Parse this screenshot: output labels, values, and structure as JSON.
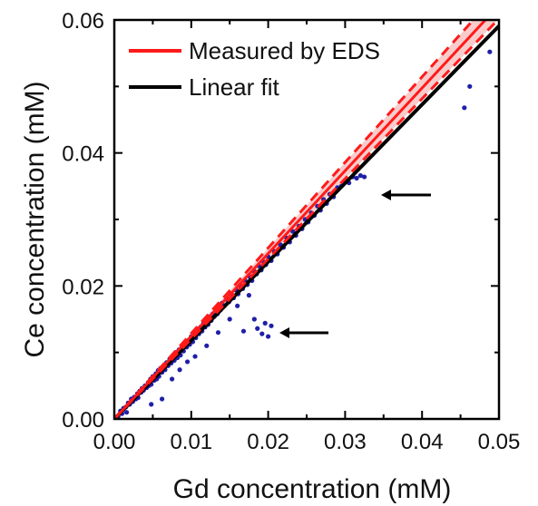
{
  "chart_data": {
    "type": "scatter",
    "title": "",
    "xlabel": "Gd concentration (mM)",
    "ylabel": "Ce concentration (mM)",
    "xlim": [
      0,
      0.05
    ],
    "ylim": [
      0,
      0.06
    ],
    "xticks": [
      0,
      0.01,
      0.02,
      0.03,
      0.04,
      0.05
    ],
    "yticks": [
      0,
      0.02,
      0.04,
      0.06
    ],
    "x_tick_labels": [
      "0.00",
      "0.01",
      "0.02",
      "0.03",
      "0.04",
      "0.05"
    ],
    "y_tick_labels": [
      "0.00",
      "0.02",
      "0.04",
      "0.06"
    ],
    "grid": false,
    "legend_position": "top-left",
    "series": [
      {
        "name": "Measured by EDS",
        "kind": "line",
        "color": "#ff1a1a",
        "points": [
          [
            0,
            0
          ],
          [
            0.05,
            0.0622
          ]
        ],
        "band_color": "#f4a3a3",
        "dashed_upper": [
          [
            0,
            0
          ],
          [
            0.05,
            0.0643
          ]
        ],
        "dashed_lower": [
          [
            0,
            0
          ],
          [
            0.05,
            0.0602
          ]
        ]
      },
      {
        "name": "Linear fit",
        "kind": "line",
        "color": "#000000",
        "points": [
          [
            0,
            0
          ],
          [
            0.05,
            0.0591
          ]
        ]
      },
      {
        "name": "",
        "kind": "scatter",
        "color": "#1f1fa8",
        "points": [
          [
            0.0005,
            0.0004
          ],
          [
            0.0008,
            0.0012
          ],
          [
            0.001,
            0.0008
          ],
          [
            0.0012,
            0.0016
          ],
          [
            0.0015,
            0.0018
          ],
          [
            0.0016,
            0.001
          ],
          [
            0.0018,
            0.0024
          ],
          [
            0.002,
            0.0022
          ],
          [
            0.0022,
            0.003
          ],
          [
            0.0024,
            0.0026
          ],
          [
            0.0026,
            0.0033
          ],
          [
            0.0028,
            0.003
          ],
          [
            0.003,
            0.0038
          ],
          [
            0.0031,
            0.0032
          ],
          [
            0.0033,
            0.0042
          ],
          [
            0.0035,
            0.004
          ],
          [
            0.0036,
            0.0046
          ],
          [
            0.0038,
            0.0043
          ],
          [
            0.004,
            0.005
          ],
          [
            0.0042,
            0.0047
          ],
          [
            0.0044,
            0.0055
          ],
          [
            0.0045,
            0.005
          ],
          [
            0.0047,
            0.006
          ],
          [
            0.0048,
            0.0052
          ],
          [
            0.005,
            0.0064
          ],
          [
            0.0052,
            0.0058
          ],
          [
            0.0054,
            0.0068
          ],
          [
            0.0055,
            0.006
          ],
          [
            0.0057,
            0.0073
          ],
          [
            0.0058,
            0.0064
          ],
          [
            0.006,
            0.0076
          ],
          [
            0.0062,
            0.007
          ],
          [
            0.0064,
            0.008
          ],
          [
            0.0066,
            0.0074
          ],
          [
            0.0068,
            0.0085
          ],
          [
            0.007,
            0.008
          ],
          [
            0.0072,
            0.009
          ],
          [
            0.0074,
            0.0084
          ],
          [
            0.0076,
            0.0094
          ],
          [
            0.0078,
            0.0088
          ],
          [
            0.008,
            0.01
          ],
          [
            0.0082,
            0.0092
          ],
          [
            0.0084,
            0.0104
          ],
          [
            0.0086,
            0.0096
          ],
          [
            0.0088,
            0.011
          ],
          [
            0.009,
            0.0102
          ],
          [
            0.0092,
            0.0114
          ],
          [
            0.0094,
            0.0108
          ],
          [
            0.0096,
            0.0118
          ],
          [
            0.0098,
            0.0112
          ],
          [
            0.01,
            0.0124
          ],
          [
            0.0102,
            0.0116
          ],
          [
            0.0104,
            0.0128
          ],
          [
            0.0106,
            0.0122
          ],
          [
            0.0108,
            0.0134
          ],
          [
            0.011,
            0.0128
          ],
          [
            0.0112,
            0.0138
          ],
          [
            0.0114,
            0.0132
          ],
          [
            0.0116,
            0.0144
          ],
          [
            0.0118,
            0.0138
          ],
          [
            0.012,
            0.0148
          ],
          [
            0.0122,
            0.0142
          ],
          [
            0.0124,
            0.0154
          ],
          [
            0.0126,
            0.0148
          ],
          [
            0.0128,
            0.0158
          ],
          [
            0.013,
            0.0154
          ],
          [
            0.0132,
            0.0164
          ],
          [
            0.0134,
            0.0158
          ],
          [
            0.0136,
            0.017
          ],
          [
            0.0138,
            0.0164
          ],
          [
            0.014,
            0.0174
          ],
          [
            0.0143,
            0.017
          ],
          [
            0.0146,
            0.018
          ],
          [
            0.0149,
            0.0176
          ],
          [
            0.0152,
            0.0188
          ],
          [
            0.0155,
            0.0182
          ],
          [
            0.0158,
            0.0194
          ],
          [
            0.0161,
            0.0188
          ],
          [
            0.0164,
            0.02
          ],
          [
            0.0167,
            0.0196
          ],
          [
            0.017,
            0.0208
          ],
          [
            0.0173,
            0.0202
          ],
          [
            0.0176,
            0.0214
          ],
          [
            0.0179,
            0.0208
          ],
          [
            0.0182,
            0.0222
          ],
          [
            0.0185,
            0.0218
          ],
          [
            0.0188,
            0.023
          ],
          [
            0.0191,
            0.0224
          ],
          [
            0.0194,
            0.0236
          ],
          [
            0.0197,
            0.0232
          ],
          [
            0.02,
            0.0244
          ],
          [
            0.0204,
            0.0238
          ],
          [
            0.0208,
            0.0252
          ],
          [
            0.0212,
            0.0248
          ],
          [
            0.0216,
            0.0262
          ],
          [
            0.022,
            0.0258
          ],
          [
            0.0224,
            0.0272
          ],
          [
            0.0228,
            0.0266
          ],
          [
            0.0232,
            0.0282
          ],
          [
            0.0236,
            0.0276
          ],
          [
            0.024,
            0.029
          ],
          [
            0.0244,
            0.0286
          ],
          [
            0.0248,
            0.03
          ],
          [
            0.0252,
            0.0296
          ],
          [
            0.0256,
            0.031
          ],
          [
            0.026,
            0.0306
          ],
          [
            0.0264,
            0.032
          ],
          [
            0.0268,
            0.0314
          ],
          [
            0.0272,
            0.033
          ],
          [
            0.0276,
            0.0324
          ],
          [
            0.028,
            0.0338
          ],
          [
            0.0285,
            0.0334
          ],
          [
            0.029,
            0.0348
          ],
          [
            0.0295,
            0.035
          ],
          [
            0.03,
            0.0358
          ],
          [
            0.0305,
            0.0355
          ],
          [
            0.031,
            0.0364
          ],
          [
            0.0315,
            0.0362
          ],
          [
            0.032,
            0.0366
          ],
          [
            0.0325,
            0.0364
          ],
          [
            0.0048,
            0.0022
          ],
          [
            0.0062,
            0.003
          ],
          [
            0.0075,
            0.006
          ],
          [
            0.0085,
            0.0074
          ],
          [
            0.0095,
            0.0086
          ],
          [
            0.0105,
            0.0094
          ],
          [
            0.012,
            0.011
          ],
          [
            0.0135,
            0.013
          ],
          [
            0.015,
            0.015
          ],
          [
            0.016,
            0.017
          ],
          [
            0.0175,
            0.0186
          ],
          [
            0.0168,
            0.0132
          ],
          [
            0.0182,
            0.015
          ],
          [
            0.0186,
            0.0136
          ],
          [
            0.0192,
            0.0128
          ],
          [
            0.0196,
            0.0144
          ],
          [
            0.02,
            0.0124
          ],
          [
            0.0204,
            0.014
          ],
          [
            0.0455,
            0.0468
          ],
          [
            0.0462,
            0.05
          ],
          [
            0.0488,
            0.0552
          ]
        ]
      }
    ]
  }
}
